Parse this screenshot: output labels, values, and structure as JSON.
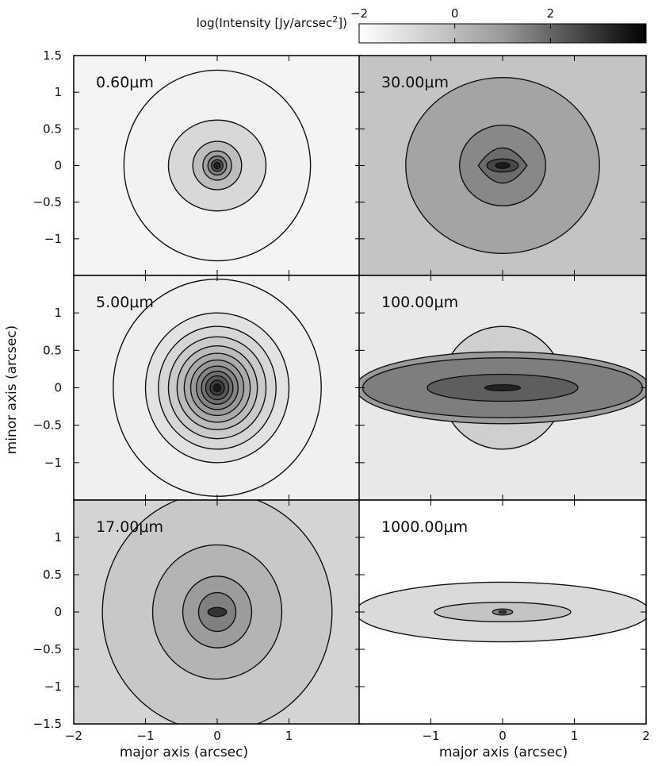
{
  "chart_data": {
    "type": "heatmap",
    "colorbar": {
      "label_main": "log(Intensity [Jy/arcsec",
      "label_sup": "2",
      "label_end": "])",
      "ticks": [
        -2,
        0,
        2
      ],
      "tick_labels": [
        "−2",
        "0",
        "2"
      ],
      "range": [
        -2,
        4
      ]
    },
    "xlabel": "major axis (arcsec)",
    "ylabel": "minor axis (arcsec)",
    "xlim": [
      -2,
      2
    ],
    "ylim": [
      -1.5,
      1.5
    ],
    "x_ticks": [
      -2,
      -1,
      0,
      1,
      2
    ],
    "x_tick_labels": [
      "−2",
      "−1",
      "0",
      "1",
      "2"
    ],
    "y_ticks": [
      -1.5,
      -1,
      -0.5,
      0,
      0.5,
      1,
      1.5
    ],
    "y_tick_labels": [
      "−1.5",
      "−1",
      "−0.5",
      "0",
      "0.5",
      "1",
      "1.5"
    ],
    "panels": [
      {
        "label": "0.60μm",
        "col": 0,
        "row": 0,
        "background": "#f4f4f4",
        "contours": [
          {
            "a": 1.3,
            "b": 1.3,
            "fill": "#f2f2f2"
          },
          {
            "a": 0.68,
            "b": 0.62,
            "fill": "#d8d8d8"
          },
          {
            "a": 0.34,
            "b": 0.33,
            "fill": "#bdbdbd"
          },
          {
            "a": 0.2,
            "b": 0.2,
            "fill": "#a0a0a0"
          },
          {
            "a": 0.13,
            "b": 0.13,
            "fill": "#808080"
          },
          {
            "a": 0.08,
            "b": 0.08,
            "fill": "#555555"
          },
          {
            "a": 0.045,
            "b": 0.045,
            "fill": "#222222"
          }
        ]
      },
      {
        "label": "30.00μm",
        "col": 1,
        "row": 0,
        "background": "#c4c4c4",
        "contours": [
          {
            "a": 1.35,
            "b": 1.2,
            "fill": "#a4a4a4"
          },
          {
            "a": 0.6,
            "b": 0.55,
            "fill": "#888888"
          },
          {
            "shape": "lens",
            "a": 0.34,
            "b": 0.24,
            "fill": "#6c6c6c"
          },
          {
            "a": 0.22,
            "b": 0.09,
            "fill": "#474747"
          },
          {
            "a": 0.1,
            "b": 0.04,
            "fill": "#1a1a1a"
          }
        ]
      },
      {
        "label": "5.00μm",
        "col": 0,
        "row": 1,
        "background": "#f0f0f0",
        "contours": [
          {
            "a": 1.45,
            "b": 1.45,
            "fill": "#eeeeee"
          },
          {
            "a": 1.0,
            "b": 1.0,
            "fill": "#e2e2e2"
          },
          {
            "a": 0.82,
            "b": 0.82,
            "fill": "#d6d6d6"
          },
          {
            "a": 0.68,
            "b": 0.68,
            "fill": "#cacaca"
          },
          {
            "a": 0.56,
            "b": 0.56,
            "fill": "#bbbbbb"
          },
          {
            "a": 0.46,
            "b": 0.46,
            "fill": "#aaaaaa"
          },
          {
            "a": 0.37,
            "b": 0.37,
            "fill": "#999999"
          },
          {
            "a": 0.29,
            "b": 0.29,
            "fill": "#868686"
          },
          {
            "a": 0.22,
            "b": 0.22,
            "fill": "#707070"
          },
          {
            "a": 0.16,
            "b": 0.16,
            "fill": "#585858"
          },
          {
            "a": 0.1,
            "b": 0.1,
            "fill": "#3c3c3c"
          },
          {
            "a": 0.05,
            "b": 0.05,
            "fill": "#1a1a1a"
          }
        ]
      },
      {
        "label": "100.00μm",
        "col": 1,
        "row": 1,
        "background": "#e8e8e8",
        "contours": [
          {
            "a": 0.85,
            "b": 0.82,
            "fill": "#cfcfcf"
          },
          {
            "a": 2.05,
            "b": 0.48,
            "fill": "#9a9a9a"
          },
          {
            "a": 1.95,
            "b": 0.4,
            "fill": "#7e7e7e"
          },
          {
            "a": 1.05,
            "b": 0.18,
            "fill": "#5e5e5e"
          },
          {
            "a": 0.25,
            "b": 0.04,
            "fill": "#222222"
          }
        ]
      },
      {
        "label": "17.00μm",
        "col": 0,
        "row": 2,
        "background": "#d4d4d4",
        "contours": [
          {
            "a": 1.6,
            "b": 1.6,
            "fill": "#c8c8c8"
          },
          {
            "a": 0.9,
            "b": 0.9,
            "fill": "#b4b4b4"
          },
          {
            "a": 0.48,
            "b": 0.48,
            "fill": "#9c9c9c"
          },
          {
            "a": 0.26,
            "b": 0.26,
            "fill": "#808080"
          },
          {
            "a": 0.13,
            "b": 0.06,
            "fill": "#333333"
          }
        ]
      },
      {
        "label": "1000.00μm",
        "col": 1,
        "row": 2,
        "background": "#ffffff",
        "contours": [
          {
            "a": 2.05,
            "b": 0.4,
            "fill": "#dadada"
          },
          {
            "a": 0.95,
            "b": 0.13,
            "fill": "#c4c4c4"
          },
          {
            "a": 0.14,
            "b": 0.04,
            "fill": "#888888"
          },
          {
            "a": 0.05,
            "b": 0.015,
            "fill": "#444444"
          }
        ]
      }
    ]
  }
}
